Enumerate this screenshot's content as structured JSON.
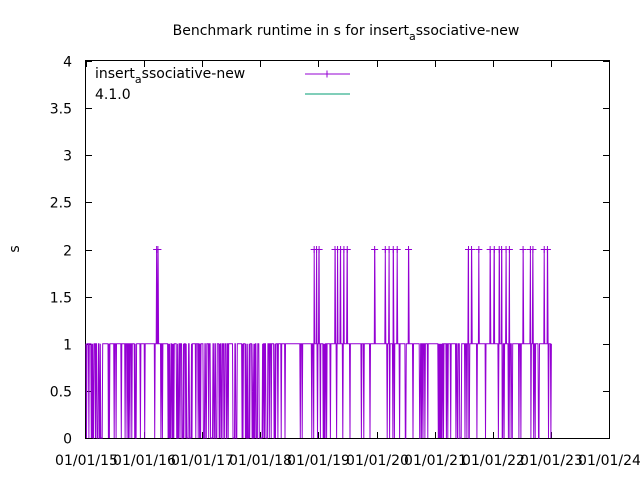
{
  "chart_data": {
    "type": "line",
    "title": {
      "base": "Benchmark runtime in s for insert",
      "sub": "a",
      "rest": "ssociative-new"
    },
    "ylabel": "s",
    "xlabel": "",
    "ylim": [
      0,
      4
    ],
    "yticks": [
      "0",
      "0.5",
      "1",
      "1.5",
      "2",
      "2.5",
      "3",
      "3.5",
      "4"
    ],
    "xlim": [
      "2015-01-01",
      "2024-01-01"
    ],
    "xticks": [
      "01/01/15",
      "01/01/16",
      "01/01/17",
      "01/01/18",
      "01/01/19",
      "01/01/20",
      "01/01/21",
      "01/01/22",
      "01/01/23",
      "01/01/24"
    ],
    "grid": false,
    "legend_position": "top-left",
    "legend": [
      {
        "base": "insert",
        "sub": "a",
        "rest": "ssociative-new"
      },
      {
        "base": "4.1.0",
        "sub": "",
        "rest": ""
      }
    ],
    "series": [
      {
        "name": "insert_associative-new",
        "color": "#9400d3",
        "marker": "plus",
        "x_range": [
          "2015-01-01",
          "2023-01-05"
        ],
        "baseline_value": 1,
        "values_present": [
          0,
          1,
          2
        ],
        "spikes_to_2": [
          "2016-03-20",
          "2016-03-28",
          "2018-12-05",
          "2018-12-20",
          "2019-01-05",
          "2019-04-15",
          "2019-05-01",
          "2019-05-20",
          "2019-06-10",
          "2019-07-01",
          "2019-12-20",
          "2020-02-25",
          "2020-03-20",
          "2020-04-15",
          "2020-05-10",
          "2020-07-20",
          "2021-08-01",
          "2021-08-20",
          "2021-10-05",
          "2021-12-15",
          "2022-01-10",
          "2022-02-10",
          "2022-02-25",
          "2022-03-25",
          "2022-04-15",
          "2022-07-10",
          "2022-08-25",
          "2022-09-10",
          "2022-11-20",
          "2022-12-10"
        ],
        "dense_dips_to_0": [
          [
            "2015-01-01",
            "2015-04-15"
          ],
          [
            "2015-09-01",
            "2015-11-15"
          ],
          [
            "2016-06-01",
            "2018-03-01"
          ]
        ]
      },
      {
        "name": "4.1.0",
        "color": "#009e73",
        "marker": "none",
        "x": [],
        "values": []
      }
    ]
  }
}
